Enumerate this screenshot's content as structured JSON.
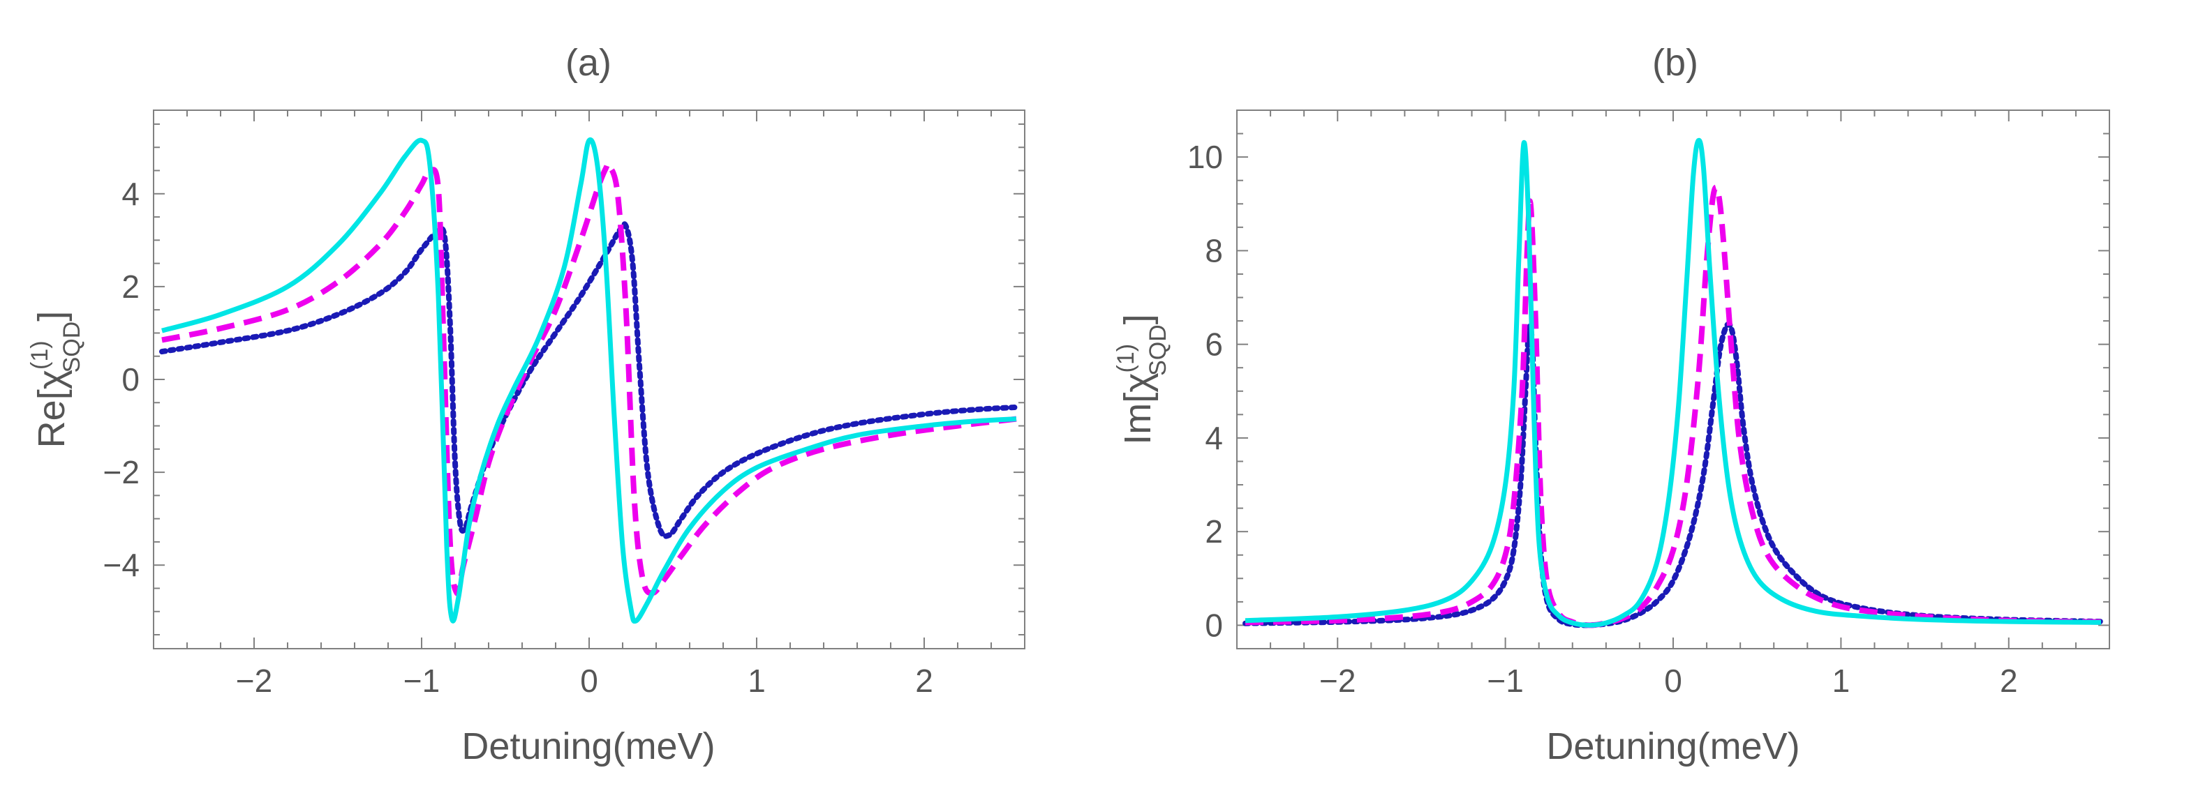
{
  "chart_data": [
    {
      "type": "line",
      "title": "(a)",
      "xlabel": "Detuning(meV)",
      "ylabel": {
        "main": "Re[χ",
        "sup": "(1)",
        "sub": "SQD",
        "close": "]"
      },
      "xlim": [
        -2.6,
        2.6
      ],
      "ylim": [
        -5.8,
        5.8
      ],
      "xticks": [
        -2,
        -1,
        0,
        1,
        2
      ],
      "xtick_labels": [
        "−2",
        "−1",
        "0",
        "1",
        "2"
      ],
      "yticks": [
        -4,
        -2,
        0,
        2,
        4
      ],
      "ytick_labels": [
        "−4",
        "−2",
        "0",
        "2",
        "4"
      ],
      "series": [
        {
          "name": "cyan-solid",
          "color": "#00e5e5",
          "style": "solid",
          "x": [
            -2.55,
            -2.2,
            -1.8,
            -1.5,
            -1.25,
            -1.1,
            -1.0,
            -0.95,
            -0.9,
            -0.85,
            -0.82,
            -0.78,
            -0.72,
            -0.65,
            -0.55,
            -0.45,
            -0.3,
            -0.15,
            -0.05,
            0.0,
            0.05,
            0.1,
            0.15,
            0.2,
            0.25,
            0.28,
            0.35,
            0.45,
            0.6,
            0.8,
            1.0,
            1.3,
            1.6,
            2.0,
            2.3,
            2.55
          ],
          "y": [
            1.05,
            1.4,
            2.0,
            2.9,
            4.0,
            4.8,
            5.15,
            4.6,
            1.8,
            -3.6,
            -5.15,
            -4.7,
            -3.2,
            -2.1,
            -1.0,
            -0.2,
            0.9,
            2.4,
            4.2,
            5.15,
            4.6,
            2.5,
            -0.8,
            -3.6,
            -4.95,
            -5.2,
            -4.8,
            -4.1,
            -3.2,
            -2.4,
            -1.9,
            -1.5,
            -1.2,
            -1.0,
            -0.9,
            -0.85
          ]
        },
        {
          "name": "magenta-dashed",
          "color": "#ee00ee",
          "style": "dashed",
          "x": [
            -2.55,
            -2.2,
            -1.8,
            -1.5,
            -1.25,
            -1.1,
            -1.0,
            -0.95,
            -0.9,
            -0.87,
            -0.83,
            -0.79,
            -0.75,
            -0.68,
            -0.6,
            -0.5,
            -0.35,
            -0.2,
            -0.05,
            0.05,
            0.1,
            0.12,
            0.17,
            0.22,
            0.27,
            0.32,
            0.38,
            0.45,
            0.55,
            0.7,
            0.9,
            1.1,
            1.4,
            1.8,
            2.2,
            2.55
          ],
          "y": [
            0.85,
            1.1,
            1.5,
            2.1,
            2.9,
            3.6,
            4.2,
            4.5,
            4.1,
            1.0,
            -3.5,
            -4.6,
            -4.0,
            -3.0,
            -1.8,
            -0.8,
            0.4,
            1.5,
            3.0,
            4.1,
            4.55,
            4.6,
            4.0,
            1.5,
            -2.6,
            -4.3,
            -4.6,
            -4.3,
            -3.8,
            -3.1,
            -2.4,
            -1.9,
            -1.5,
            -1.2,
            -1.0,
            -0.85
          ]
        },
        {
          "name": "blue-dotted",
          "color": "#1a1ab5",
          "style": "dotted",
          "x": [
            -2.55,
            -2.2,
            -1.8,
            -1.5,
            -1.25,
            -1.1,
            -1.0,
            -0.9,
            -0.86,
            -0.83,
            -0.8,
            -0.77,
            -0.74,
            -0.7,
            -0.6,
            -0.5,
            -0.35,
            -0.2,
            -0.05,
            0.1,
            0.18,
            0.22,
            0.26,
            0.3,
            0.35,
            0.42,
            0.48,
            0.55,
            0.65,
            0.8,
            1.0,
            1.3,
            1.6,
            2.0,
            2.3,
            2.55
          ],
          "y": [
            0.6,
            0.8,
            1.05,
            1.4,
            1.85,
            2.3,
            2.8,
            3.2,
            3.0,
            1.2,
            -1.8,
            -3.1,
            -3.2,
            -2.7,
            -1.6,
            -0.8,
            0.2,
            1.0,
            1.8,
            2.7,
            3.2,
            3.3,
            2.5,
            0.3,
            -2.0,
            -3.2,
            -3.35,
            -3.0,
            -2.5,
            -2.0,
            -1.6,
            -1.2,
            -0.95,
            -0.75,
            -0.65,
            -0.6
          ]
        }
      ]
    },
    {
      "type": "line",
      "title": "(b)",
      "xlabel": "Detuning(meV)",
      "ylabel": {
        "main": "Im[χ",
        "sup": "(1)",
        "sub": "SQD",
        "close": "]"
      },
      "xlim": [
        -2.6,
        2.6
      ],
      "ylim": [
        -0.5,
        11.0
      ],
      "xticks": [
        -2,
        -1,
        0,
        1,
        2
      ],
      "xtick_labels": [
        "−2",
        "−1",
        "0",
        "1",
        "2"
      ],
      "yticks": [
        0,
        2,
        4,
        6,
        8,
        10
      ],
      "ytick_labels": [
        "0",
        "2",
        "4",
        "6",
        "8",
        "10"
      ],
      "series": [
        {
          "name": "cyan-solid",
          "color": "#00e5e5",
          "style": "solid",
          "x": [
            -2.55,
            -2.0,
            -1.6,
            -1.35,
            -1.2,
            -1.08,
            -1.0,
            -0.95,
            -0.92,
            -0.89,
            -0.86,
            -0.83,
            -0.8,
            -0.75,
            -0.68,
            -0.6,
            -0.5,
            -0.4,
            -0.3,
            -0.2,
            -0.1,
            -0.03,
            0.03,
            0.08,
            0.12,
            0.15,
            0.18,
            0.22,
            0.27,
            0.33,
            0.4,
            0.5,
            0.65,
            0.85,
            1.1,
            1.5,
            2.0,
            2.55
          ],
          "y": [
            0.1,
            0.18,
            0.32,
            0.55,
            0.95,
            1.7,
            3.0,
            5.0,
            7.8,
            10.3,
            8.5,
            4.5,
            1.8,
            0.6,
            0.2,
            0.05,
            0.0,
            0.05,
            0.2,
            0.5,
            1.3,
            2.6,
            4.6,
            7.3,
            9.6,
            10.35,
            9.8,
            7.5,
            5.0,
            3.0,
            1.8,
            1.0,
            0.55,
            0.3,
            0.2,
            0.12,
            0.08,
            0.06
          ]
        },
        {
          "name": "magenta-dashed",
          "color": "#ee00ee",
          "style": "dashed",
          "x": [
            -2.55,
            -2.0,
            -1.6,
            -1.35,
            -1.2,
            -1.08,
            -1.0,
            -0.95,
            -0.9,
            -0.87,
            -0.85,
            -0.82,
            -0.79,
            -0.75,
            -0.68,
            -0.6,
            -0.5,
            -0.4,
            -0.3,
            -0.2,
            -0.1,
            0.0,
            0.08,
            0.15,
            0.2,
            0.24,
            0.27,
            0.3,
            0.35,
            0.4,
            0.48,
            0.58,
            0.75,
            0.95,
            1.2,
            1.6,
            2.0,
            2.55
          ],
          "y": [
            0.06,
            0.1,
            0.18,
            0.3,
            0.5,
            0.85,
            1.5,
            2.6,
            5.0,
            8.0,
            9.0,
            6.5,
            2.8,
            0.9,
            0.25,
            0.07,
            0.0,
            0.05,
            0.15,
            0.35,
            0.8,
            1.6,
            3.0,
            5.3,
            7.8,
            9.2,
            9.2,
            8.2,
            5.8,
            3.8,
            2.3,
            1.4,
            0.8,
            0.45,
            0.28,
            0.16,
            0.1,
            0.07
          ]
        },
        {
          "name": "blue-dotted",
          "color": "#1a1ab5",
          "style": "dotted",
          "x": [
            -2.55,
            -2.0,
            -1.6,
            -1.35,
            -1.2,
            -1.08,
            -1.0,
            -0.95,
            -0.91,
            -0.88,
            -0.86,
            -0.84,
            -0.82,
            -0.79,
            -0.75,
            -0.68,
            -0.6,
            -0.5,
            -0.4,
            -0.3,
            -0.2,
            -0.1,
            0.0,
            0.1,
            0.18,
            0.24,
            0.28,
            0.32,
            0.35,
            0.38,
            0.42,
            0.48,
            0.58,
            0.72,
            0.9,
            1.15,
            1.5,
            2.0,
            2.55
          ],
          "y": [
            0.04,
            0.07,
            0.12,
            0.2,
            0.32,
            0.55,
            0.95,
            1.6,
            3.0,
            5.0,
            6.3,
            6.0,
            3.9,
            1.6,
            0.5,
            0.12,
            0.02,
            0.0,
            0.03,
            0.1,
            0.25,
            0.5,
            0.95,
            1.9,
            3.2,
            4.8,
            5.9,
            6.4,
            6.3,
            5.6,
            4.2,
            2.9,
            1.8,
            1.1,
            0.6,
            0.35,
            0.2,
            0.12,
            0.08
          ]
        }
      ]
    }
  ]
}
